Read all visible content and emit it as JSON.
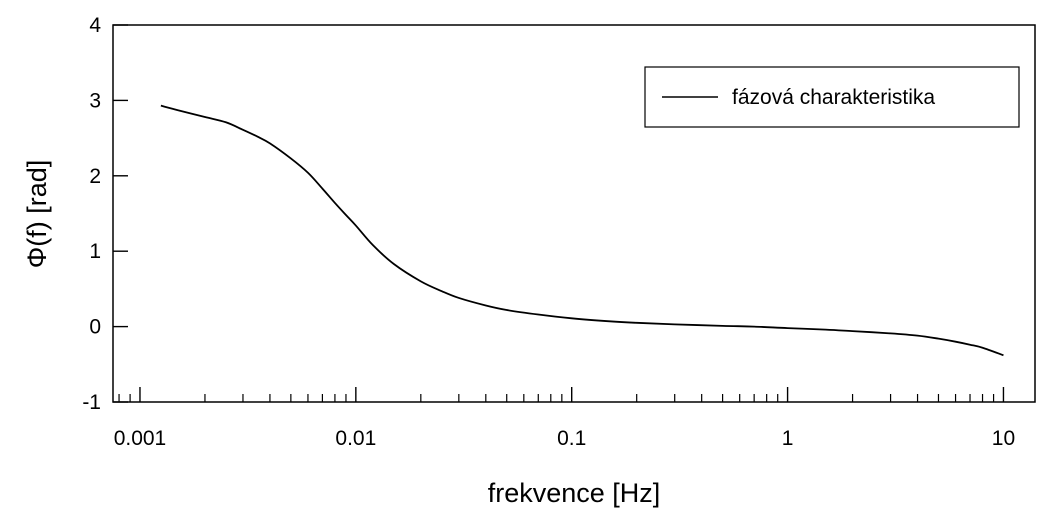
{
  "chart_data": {
    "type": "line",
    "x_scale": "log",
    "xlim": [
      0.00075,
      14
    ],
    "ylim": [
      -1,
      4
    ],
    "xlabel": "frekvence [Hz]",
    "ylabel": "Φ(f) [rad]",
    "x_ticks": [
      {
        "value": 0.001,
        "label": "0.001"
      },
      {
        "value": 0.01,
        "label": "0.01"
      },
      {
        "value": 0.1,
        "label": "0.1"
      },
      {
        "value": 1,
        "label": "1"
      },
      {
        "value": 10,
        "label": "10"
      }
    ],
    "y_ticks": [
      {
        "value": -1,
        "label": "-1"
      },
      {
        "value": 0,
        "label": "0"
      },
      {
        "value": 1,
        "label": "1"
      },
      {
        "value": 2,
        "label": "2"
      },
      {
        "value": 3,
        "label": "3"
      },
      {
        "value": 4,
        "label": "4"
      }
    ],
    "grid": false,
    "legend_position": "top-right",
    "series": [
      {
        "name": "fázová charakteristika",
        "color": "#000000",
        "x": [
          0.00125,
          0.0015,
          0.002,
          0.0025,
          0.003,
          0.0035,
          0.004,
          0.005,
          0.006,
          0.007,
          0.008,
          0.009,
          0.01,
          0.012,
          0.015,
          0.02,
          0.025,
          0.03,
          0.04,
          0.05,
          0.07,
          0.1,
          0.15,
          0.2,
          0.3,
          0.5,
          0.7,
          1,
          1.5,
          2,
          3,
          4,
          5,
          6,
          7,
          8,
          10
        ],
        "y": [
          2.93,
          2.87,
          2.78,
          2.71,
          2.61,
          2.52,
          2.43,
          2.23,
          2.04,
          1.83,
          1.64,
          1.48,
          1.34,
          1.08,
          0.83,
          0.6,
          0.47,
          0.38,
          0.28,
          0.22,
          0.16,
          0.11,
          0.07,
          0.05,
          0.03,
          0.01,
          0.0,
          -0.02,
          -0.04,
          -0.06,
          -0.09,
          -0.12,
          -0.16,
          -0.2,
          -0.24,
          -0.28,
          -0.38
        ]
      }
    ]
  }
}
